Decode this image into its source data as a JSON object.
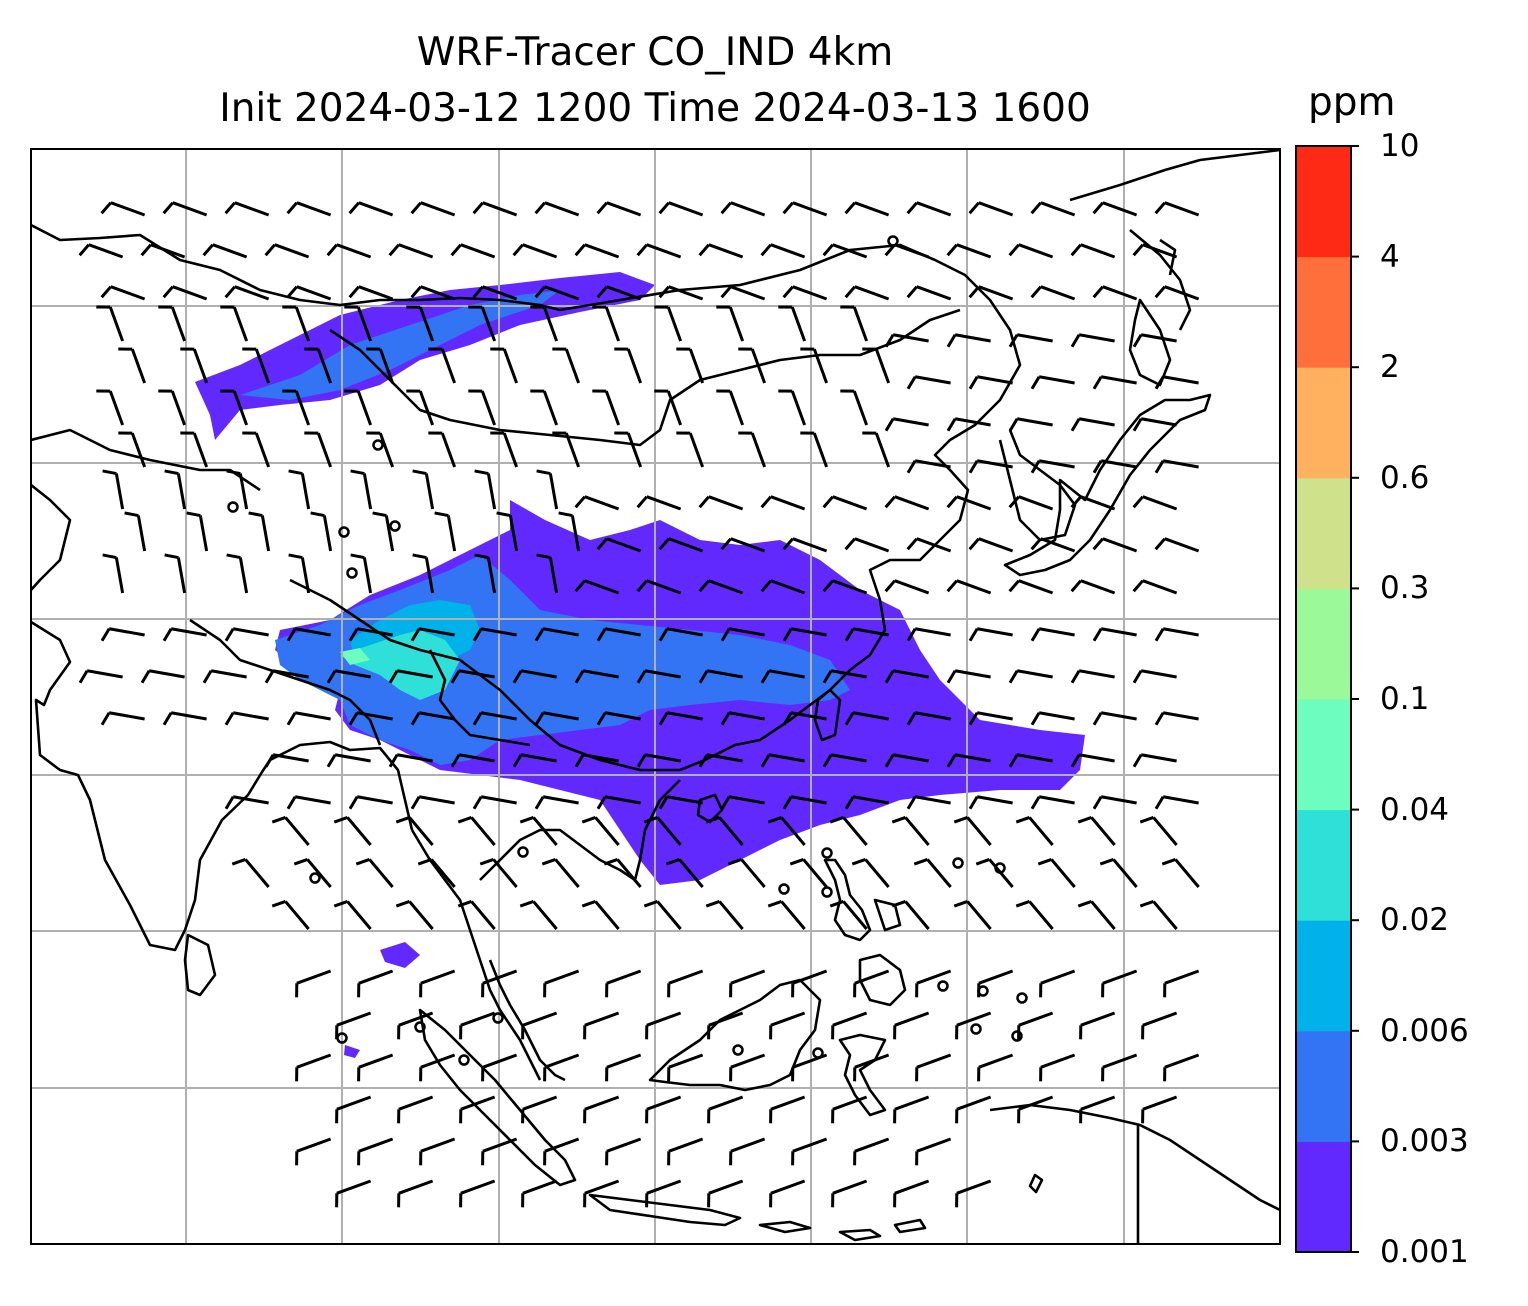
{
  "title": {
    "line1": "WRF-Tracer CO_IND 4km",
    "line2": "Init 2024-03-12 1200 Time 2024-03-13 1600"
  },
  "colorbar": {
    "unit": "ppm",
    "levels": [
      "0.001",
      "0.003",
      "0.006",
      "0.02",
      "0.04",
      "0.1",
      "0.3",
      "0.6",
      "2",
      "4",
      "10"
    ],
    "colors": [
      "#6229ff",
      "#3274f3",
      "#00b1ea",
      "#2fe0d8",
      "#6dfdbf",
      "#9bf99a",
      "#cfe18a",
      "#ffb15f",
      "#ff6f3b",
      "#ff2a16"
    ]
  },
  "map": {
    "region": "South / East / Southeast Asia",
    "gridlines": true,
    "coastlines": true,
    "wind_barbs": true,
    "tracer": "CO_IND"
  }
}
